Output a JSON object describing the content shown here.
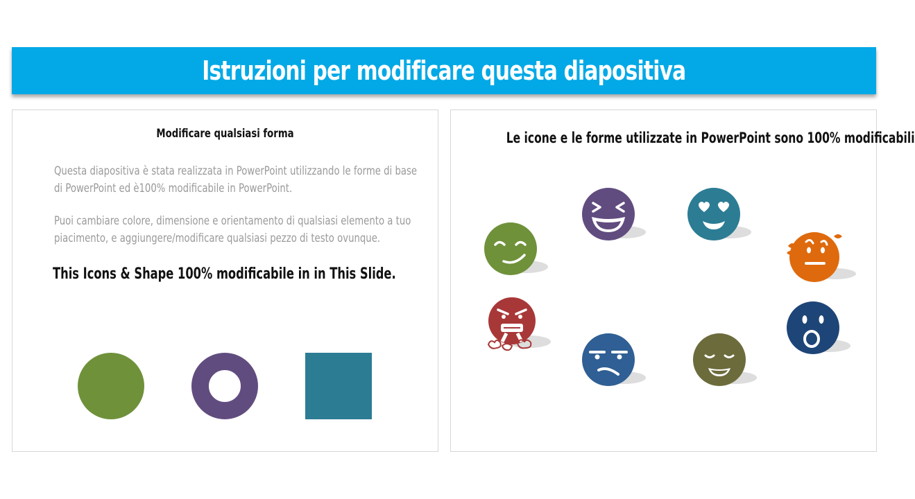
{
  "title": "Istruzioni per modificare questa diapositiva",
  "left_panel": {
    "heading": "Modificare qualsiasi forma",
    "paragraph1": "Questa diapositiva è stata realizzata in PowerPoint utilizzando le forme di base di PowerPoint ed è100% modificabile in PowerPoint.",
    "paragraph2": "Puoi cambiare colore, dimensione e orientamento di qualsiasi elemento a tuo piacimento, e aggiungere/modificare qualsiasi pezzo di testo ovunque.",
    "icons_line": "This Icons & Shape 100% modificabile in in This Slide.",
    "shapes": [
      {
        "name": "circle",
        "color": "#6f913a"
      },
      {
        "name": "ring",
        "color": "#614c7f"
      },
      {
        "name": "square",
        "color": "#2c7c94"
      }
    ]
  },
  "right_panel": {
    "heading": "Le icone e le forme utilizzate in PowerPoint sono 100% modificabili",
    "emojis": [
      {
        "name": "smirk-face-icon",
        "color": "#6f913a"
      },
      {
        "name": "laughing-face-icon",
        "color": "#614c7f"
      },
      {
        "name": "heart-eyes-face-icon",
        "color": "#2c7c94"
      },
      {
        "name": "sweating-face-icon",
        "color": "#de6a0d"
      },
      {
        "name": "angry-steam-face-icon",
        "color": "#a83838"
      },
      {
        "name": "annoyed-face-icon",
        "color": "#2f5f94"
      },
      {
        "name": "smiling-closed-eyes-face-icon",
        "color": "#6c6b3b"
      },
      {
        "name": "surprised-face-icon",
        "color": "#1e4577"
      }
    ]
  }
}
